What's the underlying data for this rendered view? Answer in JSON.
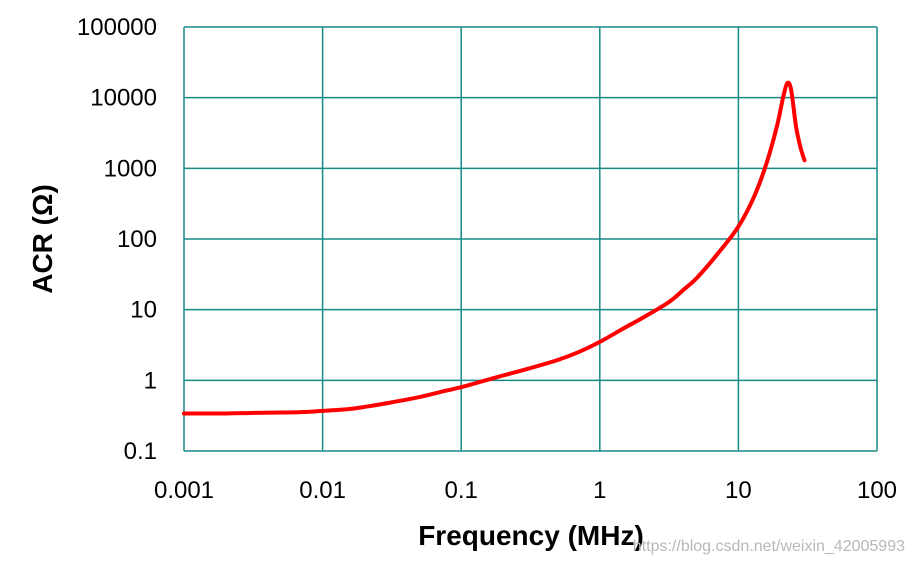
{
  "chart_data": {
    "type": "line",
    "title": "",
    "xlabel": "Frequency (MHz)",
    "ylabel": "ACR (Ω)",
    "xscale": "log",
    "yscale": "log",
    "xlim": [
      0.001,
      100
    ],
    "ylim": [
      0.1,
      100000
    ],
    "x_ticks": [
      "0.001",
      "0.01",
      "0.1",
      "1",
      "10",
      "100"
    ],
    "y_ticks": [
      "0.1",
      "1",
      "10",
      "100",
      "1000",
      "10000",
      "100000"
    ],
    "grid": true,
    "legend": "none",
    "series": [
      {
        "color": "#ff0000",
        "x": [
          0.001,
          0.002,
          0.003,
          0.005,
          0.007,
          0.01,
          0.015,
          0.02,
          0.03,
          0.05,
          0.07,
          0.1,
          0.15,
          0.2,
          0.3,
          0.5,
          0.7,
          1,
          1.5,
          2,
          3,
          3.5,
          4,
          5,
          7,
          10,
          13,
          16,
          19,
          21,
          22.5,
          24,
          26,
          28,
          30
        ],
        "y": [
          0.34,
          0.34,
          0.345,
          0.35,
          0.355,
          0.37,
          0.39,
          0.42,
          0.48,
          0.58,
          0.68,
          0.8,
          1.0,
          1.17,
          1.45,
          1.95,
          2.5,
          3.5,
          5.5,
          7.5,
          12,
          15,
          19,
          28,
          60,
          150,
          400,
          1200,
          4000,
          10000,
          16000,
          13000,
          4000,
          2000,
          1300
        ]
      }
    ]
  },
  "watermark": "https://blog.csdn.net/weixin_42005993"
}
